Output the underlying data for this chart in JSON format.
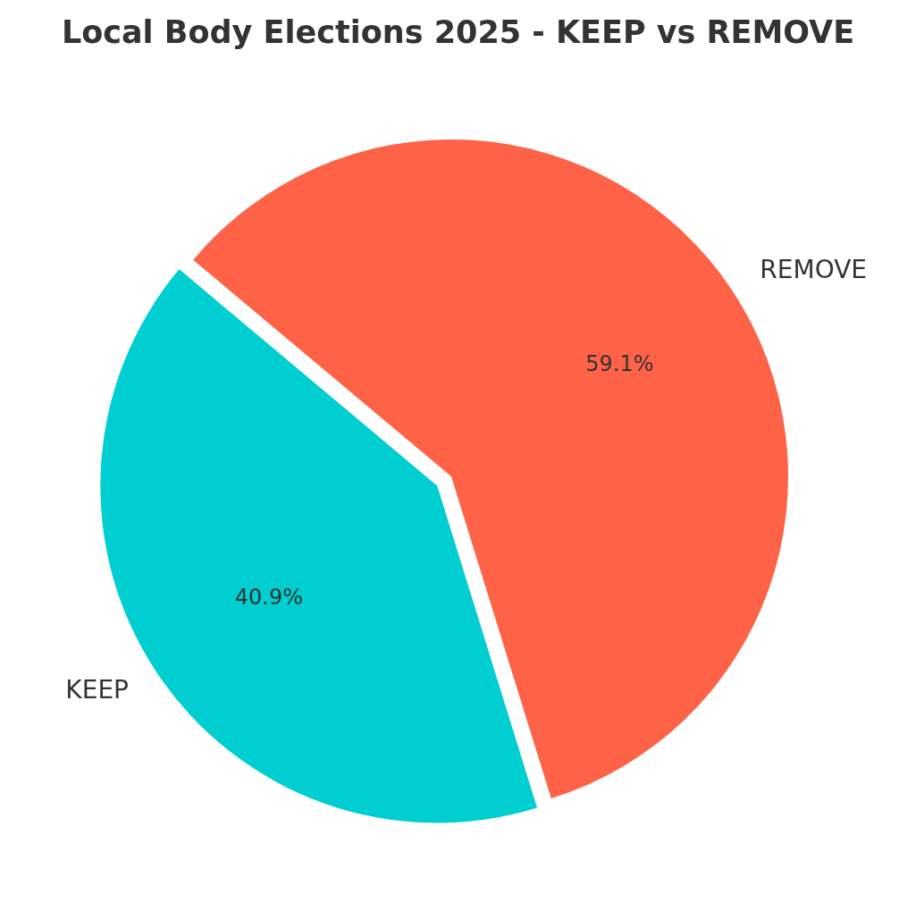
{
  "chart_data": {
    "type": "pie",
    "title": "Local Body Elections 2025 - KEEP vs REMOVE",
    "categories": [
      "KEEP",
      "REMOVE"
    ],
    "values": [
      40.9,
      59.1
    ],
    "colors": [
      "#00ced1",
      "#ff6347"
    ],
    "value_labels": [
      "40.9%",
      "59.1%"
    ]
  }
}
